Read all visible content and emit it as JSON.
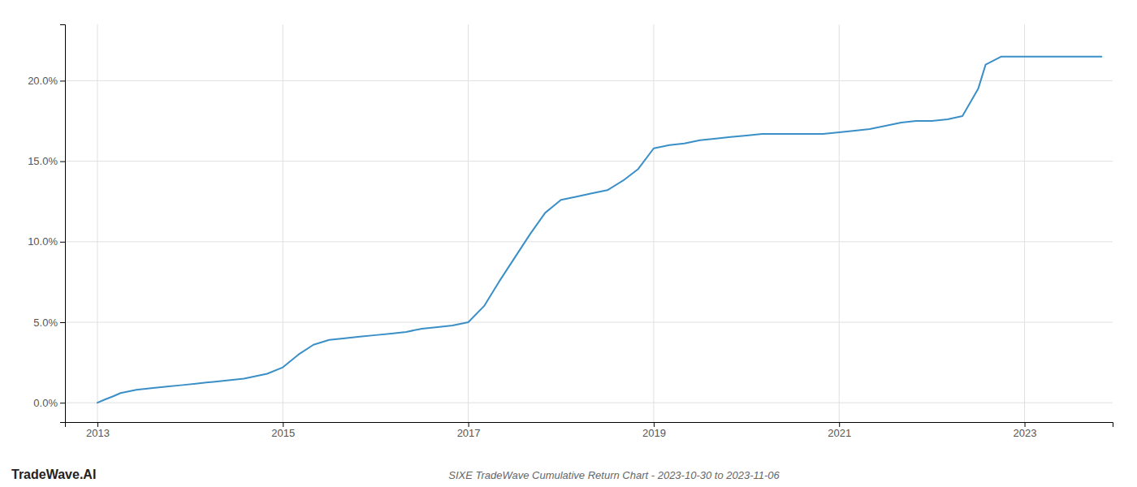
{
  "chart_data": {
    "type": "line",
    "title": "SIXE TradeWave Cumulative Return Chart - 2023-10-30 to 2023-11-06",
    "annotations": [
      "TradeWave.AI"
    ],
    "color": "#3a8fc7",
    "grid": true,
    "x": [
      2013.0,
      2013.08,
      2013.17,
      2013.25,
      2013.42,
      2013.58,
      2013.75,
      2013.92,
      2014.08,
      2014.25,
      2014.58,
      2014.83,
      2015.0,
      2015.17,
      2015.33,
      2015.5,
      2015.67,
      2015.83,
      2016.0,
      2016.17,
      2016.33,
      2016.5,
      2016.67,
      2016.83,
      2017.0,
      2017.17,
      2017.33,
      2017.5,
      2017.67,
      2017.83,
      2018.0,
      2018.17,
      2018.33,
      2018.5,
      2018.67,
      2018.83,
      2019.0,
      2019.17,
      2019.33,
      2019.5,
      2019.67,
      2019.83,
      2020.0,
      2020.17,
      2020.33,
      2020.5,
      2020.67,
      2020.83,
      2021.0,
      2021.17,
      2021.33,
      2021.5,
      2021.67,
      2021.83,
      2022.0,
      2022.17,
      2022.33,
      2022.5,
      2022.58,
      2022.75,
      2022.83,
      2023.0,
      2023.5,
      2023.83
    ],
    "values": [
      0.0,
      0.002,
      0.004,
      0.006,
      0.008,
      0.009,
      0.01,
      0.011,
      0.012,
      0.013,
      0.015,
      0.018,
      0.022,
      0.03,
      0.036,
      0.039,
      0.04,
      0.041,
      0.042,
      0.043,
      0.044,
      0.046,
      0.047,
      0.048,
      0.05,
      0.06,
      0.075,
      0.09,
      0.105,
      0.118,
      0.126,
      0.128,
      0.13,
      0.132,
      0.138,
      0.145,
      0.158,
      0.16,
      0.161,
      0.163,
      0.164,
      0.165,
      0.166,
      0.167,
      0.167,
      0.167,
      0.167,
      0.167,
      0.168,
      0.169,
      0.17,
      0.172,
      0.174,
      0.175,
      0.175,
      0.176,
      0.178,
      0.195,
      0.21,
      0.215,
      0.215,
      0.215,
      0.215,
      0.215
    ],
    "xlim": [
      2012.65,
      2023.95
    ],
    "ylim": [
      -0.012,
      0.235
    ],
    "xticks": [
      2013,
      2015,
      2017,
      2019,
      2021,
      2023
    ],
    "yticks": [
      {
        "value": 0.0,
        "label": "0.0%"
      },
      {
        "value": 0.05,
        "label": "5.0%"
      },
      {
        "value": 0.1,
        "label": "10.0%"
      },
      {
        "value": 0.15,
        "label": "15.0%"
      },
      {
        "value": 0.2,
        "label": "20.0%"
      }
    ]
  }
}
